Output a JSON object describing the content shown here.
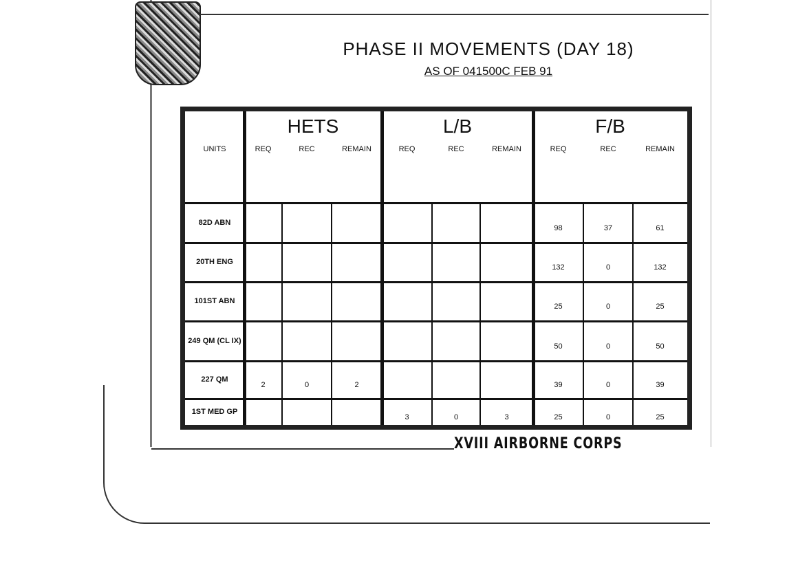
{
  "title": "PHASE II MOVEMENTS (DAY 18)",
  "subtitle": "AS OF 041500C FEB 91",
  "footer": "XVIII AIRBORNE CORPS",
  "table": {
    "units_header": "UNITS",
    "groups": [
      "HETS",
      "L/B",
      "F/B"
    ],
    "subheaders": [
      "REQ",
      "REC",
      "REMAIN"
    ],
    "rows": [
      {
        "unit": "82D ABN",
        "values": [
          "",
          "",
          "",
          "",
          "",
          "",
          "98",
          "37",
          "61"
        ]
      },
      {
        "unit": "20TH ENG",
        "values": [
          "",
          "",
          "",
          "",
          "",
          "",
          "132",
          "0",
          "132"
        ]
      },
      {
        "unit": "101ST ABN",
        "values": [
          "",
          "",
          "",
          "",
          "",
          "",
          "25",
          "0",
          "25"
        ]
      },
      {
        "unit": "249 QM (CL IX)",
        "values": [
          "",
          "",
          "",
          "",
          "",
          "",
          "50",
          "0",
          "50"
        ]
      },
      {
        "unit": "227 QM",
        "values": [
          "2",
          "0",
          "2",
          "",
          "",
          "",
          "39",
          "0",
          "39"
        ]
      },
      {
        "unit": "1ST MED GP",
        "values": [
          "",
          "",
          "",
          "3",
          "0",
          "3",
          "25",
          "0",
          "25"
        ]
      }
    ]
  }
}
